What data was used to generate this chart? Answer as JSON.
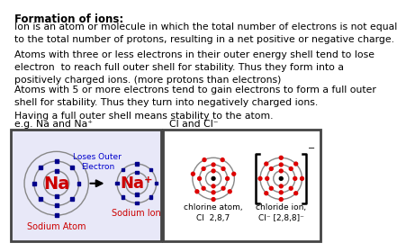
{
  "title": "Formation of ions:",
  "para1": "Ion is an atom or molecule in which the total number of electrons is not equal\nto the total number of protons, resulting in a net positive or negative charge.",
  "para2": "Atoms with three or less electrons in their outer energy shell tend to lose\nelectron  to reach full outer shell for stability. Thus they form into a\npositively charged ions. (more protons than electrons)",
  "para3": "Atoms with 5 or more electrons tend to gain electrons to form a full outer\nshell for stability. Thus they turn into negatively charged ions.",
  "para4": "Having a full outer shell means stability to the atom.",
  "para5_a": "e.g. Na and Na⁺",
  "para5_b": "Cl and Cl⁻",
  "bg_color": "#ffffff",
  "text_color": "#000000",
  "na_color": "#cc0000",
  "electron_color": "#00008B",
  "cl_electron_color": "#dd0000",
  "orbit_color": "#888888",
  "label_color": "#cc0000",
  "annotation_color": "#0000cc",
  "na_box_facecolor": "#e8e8f8",
  "cl_box_facecolor": "#ffffff",
  "box_edge_color": "#444444",
  "font": "Comic Sans MS",
  "fs_title": 8.5,
  "fs_body": 7.8,
  "fs_na_label": 14,
  "fs_sublabel": 7.0,
  "fs_cl_sublabel": 6.5,
  "fs_annotation": 6.5
}
